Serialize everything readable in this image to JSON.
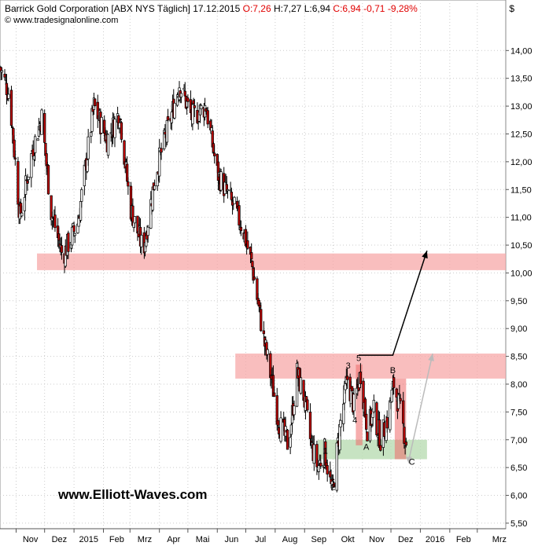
{
  "header": {
    "title": "Barrick Gold Corporation [ABX NYS  Täglich] 17.12.2015",
    "open": "O:7,26",
    "high": "H:7,27",
    "low": "L:6,94",
    "close": "C:6,94",
    "change": "-0,71",
    "change_pct": "-9,28%",
    "source": "© www.tradesignalonline.com",
    "currency": "$"
  },
  "watermark": "www.Elliott-Waves.com",
  "colors": {
    "candle_up": "#ffffff",
    "candle_down": "#c00000",
    "candle_body_default": "#000000",
    "resistance_zone": "#f7a8a8",
    "support_zone": "#b9dcb3",
    "projection_arrow": "#000000",
    "alt_arrow": "#bbbbbb",
    "grid": "#cccccc",
    "negative_text": "#e00000"
  },
  "chart_data": {
    "type": "candlestick",
    "ylim": [
      5.4,
      14.4
    ],
    "y_ticks": [
      "5,50",
      "6,00",
      "6,50",
      "7,00",
      "7,50",
      "8,00",
      "8,50",
      "9,00",
      "9,50",
      "10,00",
      "10,50",
      "11,00",
      "11,50",
      "12,00",
      "12,50",
      "13,00",
      "13,50",
      "14,00"
    ],
    "y_tick_values": [
      5.5,
      6.0,
      6.5,
      7.0,
      7.5,
      8.0,
      8.5,
      9.0,
      9.5,
      10.0,
      10.5,
      11.0,
      11.5,
      12.0,
      12.5,
      13.0,
      13.5,
      14.0
    ],
    "x_labels": [
      "Nov",
      "Dez",
      "2015",
      "Feb",
      "Mrz",
      "Apr",
      "Mai",
      "Jun",
      "Jul",
      "Aug",
      "Sep",
      "Okt",
      "Nov",
      "Dez",
      "2016",
      "Feb",
      "Mrz"
    ],
    "x_start": "2014-10-15",
    "x_end": "2016-03-31",
    "price_path": [
      [
        "2014-10-15",
        13.7
      ],
      [
        "2014-10-25",
        13.2
      ],
      [
        "2014-11-05",
        11.0
      ],
      [
        "2014-11-18",
        12.2
      ],
      [
        "2014-11-28",
        12.8
      ],
      [
        "2014-12-08",
        11.1
      ],
      [
        "2014-12-20",
        10.3
      ],
      [
        "2015-01-05",
        10.9
      ],
      [
        "2015-01-22",
        13.0
      ],
      [
        "2015-02-05",
        12.4
      ],
      [
        "2015-02-18",
        12.9
      ],
      [
        "2015-03-01",
        11.2
      ],
      [
        "2015-03-15",
        10.4
      ],
      [
        "2015-03-28",
        11.8
      ],
      [
        "2015-04-10",
        12.6
      ],
      [
        "2015-04-22",
        13.4
      ],
      [
        "2015-05-05",
        12.8
      ],
      [
        "2015-05-20",
        13.0
      ],
      [
        "2015-06-01",
        11.8
      ],
      [
        "2015-06-15",
        11.3
      ],
      [
        "2015-06-28",
        10.8
      ],
      [
        "2015-07-08",
        10.1
      ],
      [
        "2015-07-20",
        8.8
      ],
      [
        "2015-07-28",
        8.1
      ],
      [
        "2015-08-05",
        7.3
      ],
      [
        "2015-08-15",
        6.9
      ],
      [
        "2015-08-24",
        8.2
      ],
      [
        "2015-08-31",
        7.8
      ],
      [
        "2015-09-08",
        6.9
      ],
      [
        "2015-09-15",
        6.5
      ],
      [
        "2015-09-22",
        6.8
      ],
      [
        "2015-09-30",
        6.05
      ],
      [
        "2015-10-08",
        7.2
      ],
      [
        "2015-10-16",
        8.1
      ],
      [
        "2015-10-23",
        7.6
      ],
      [
        "2015-10-30",
        8.2
      ],
      [
        "2015-11-06",
        7.2
      ],
      [
        "2015-11-13",
        7.5
      ],
      [
        "2015-11-20",
        7.0
      ],
      [
        "2015-11-28",
        7.4
      ],
      [
        "2015-12-04",
        8.0
      ],
      [
        "2015-12-10",
        7.6
      ],
      [
        "2015-12-17",
        6.94
      ]
    ],
    "zones": [
      {
        "kind": "resistance",
        "y_range": [
          10.05,
          10.35
        ],
        "x_range": [
          "2014-11-23",
          "2016-03-31"
        ]
      },
      {
        "kind": "resistance",
        "y_range": [
          8.1,
          8.55
        ],
        "x_range": [
          "2015-06-20",
          "2016-03-31"
        ]
      },
      {
        "kind": "support",
        "y_range": [
          6.65,
          7.0
        ],
        "x_range": [
          "2015-09-15",
          "2016-01-08"
        ]
      },
      {
        "kind": "wave-box",
        "y_range": [
          6.9,
          8.35
        ],
        "x_range": [
          "2015-10-25",
          "2015-11-01"
        ]
      },
      {
        "kind": "wave-box",
        "y_range": [
          6.65,
          8.1
        ],
        "x_range": [
          "2015-12-05",
          "2015-12-17"
        ]
      }
    ],
    "wave_labels": [
      {
        "text": "1",
        "date": "2015-09-23",
        "y": 6.75
      },
      {
        "text": "2",
        "date": "2015-10-01",
        "y": 6.1
      },
      {
        "text": "3",
        "date": "2015-10-17",
        "y": 8.28
      },
      {
        "text": "4",
        "date": "2015-10-24",
        "y": 7.3
      },
      {
        "text": "5",
        "date": "2015-10-28",
        "y": 8.42
      },
      {
        "text": "A",
        "date": "2015-11-05",
        "y": 6.82
      },
      {
        "text": "B",
        "date": "2015-12-03",
        "y": 8.2
      },
      {
        "text": "C",
        "date": "2015-12-23",
        "y": 6.55
      }
    ],
    "projection": [
      [
        "2015-10-28",
        8.52
      ],
      [
        "2015-12-03",
        8.52
      ],
      [
        "2016-01-08",
        10.4
      ]
    ],
    "alt_projection": [
      [
        "2015-12-20",
        6.65
      ],
      [
        "2016-01-14",
        8.55
      ]
    ]
  }
}
